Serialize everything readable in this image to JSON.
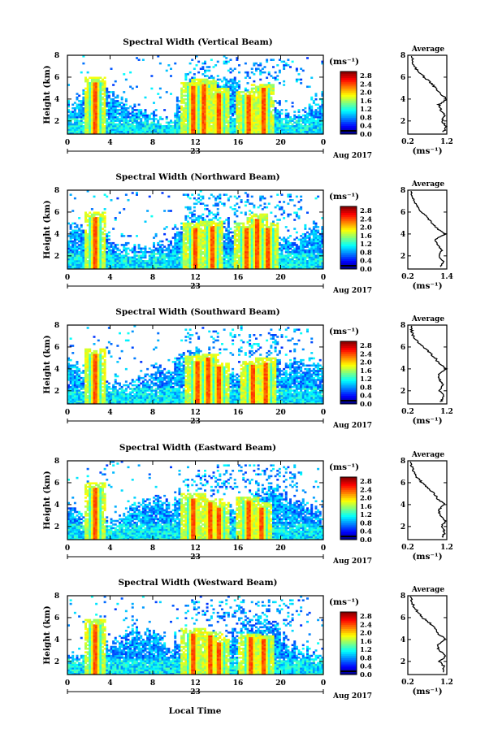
{
  "chart_data": [
    {
      "type": "heatmap",
      "title": "Spectral Width (Vertical Beam)",
      "ylabel": "Height (km)",
      "yticks": [
        "2",
        "4",
        "6",
        "8"
      ],
      "xticks": [
        "0",
        "4",
        "8",
        "12",
        "16",
        "20",
        "0"
      ],
      "xlim": [
        0,
        24
      ],
      "ylim": [
        0.8,
        8
      ],
      "date_label": "23",
      "month_label": "Aug 2017",
      "colorbar": {
        "unit": "(ms⁻¹)",
        "ticks": [
          "0.0",
          "0.4",
          "0.8",
          "1.2",
          "1.6",
          "2.0",
          "2.4",
          "2.8"
        ],
        "range": [
          0,
          3.0
        ]
      },
      "bursts": [
        {
          "t": 2.6,
          "top": 5.6
        },
        {
          "t": 11.8,
          "top": 5.2
        },
        {
          "t": 12.8,
          "top": 5.4
        },
        {
          "t": 14.2,
          "top": 4.6
        },
        {
          "t": 17.0,
          "top": 4.4
        },
        {
          "t": 18.4,
          "top": 5.0
        }
      ],
      "average": {
        "title": "Average",
        "xlabel": "(ms⁻¹)",
        "xticks": [
          "0.2",
          "1.2"
        ],
        "xlim": [
          0.2,
          1.2
        ],
        "yticks": [
          "2",
          "4",
          "6",
          "8"
        ],
        "height": [
          1.0,
          1.5,
          2.0,
          2.5,
          3.0,
          3.5,
          4.0,
          4.5,
          5.0,
          5.5,
          6.0,
          6.5,
          7.0,
          7.5,
          8.0
        ],
        "value": [
          1.12,
          1.18,
          1.08,
          1.14,
          1.05,
          1.0,
          1.2,
          1.02,
          0.92,
          0.78,
          0.62,
          0.48,
          0.36,
          0.32,
          0.3
        ]
      }
    },
    {
      "type": "heatmap",
      "title": "Spectral Width (Northward Beam)",
      "ylabel": "Height (km)",
      "yticks": [
        "2",
        "4",
        "6",
        "8"
      ],
      "xticks": [
        "0",
        "4",
        "8",
        "12",
        "16",
        "20",
        "0"
      ],
      "xlim": [
        0,
        24
      ],
      "ylim": [
        0.8,
        8
      ],
      "date_label": "23",
      "month_label": "Aug 2017",
      "colorbar": {
        "unit": "(ms⁻¹)",
        "ticks": [
          "0.0",
          "0.4",
          "0.8",
          "1.2",
          "1.6",
          "2.0",
          "2.4",
          "2.8"
        ],
        "range": [
          0,
          3.0
        ]
      },
      "bursts": [
        {
          "t": 2.6,
          "top": 5.6
        },
        {
          "t": 12.0,
          "top": 4.6
        },
        {
          "t": 13.6,
          "top": 4.8
        },
        {
          "t": 16.8,
          "top": 4.6
        },
        {
          "t": 17.8,
          "top": 5.4
        },
        {
          "t": 18.8,
          "top": 4.6
        }
      ],
      "average": {
        "title": "Average",
        "xlabel": "(ms⁻¹)",
        "xticks": [
          "0.2",
          "1.4"
        ],
        "xlim": [
          0.2,
          1.4
        ],
        "yticks": [
          "2",
          "4",
          "6",
          "8"
        ],
        "height": [
          1.0,
          1.5,
          2.0,
          2.5,
          3.0,
          3.5,
          4.0,
          4.5,
          5.0,
          5.5,
          6.0,
          6.5,
          7.0,
          7.5,
          8.0
        ],
        "value": [
          1.2,
          1.28,
          1.15,
          1.25,
          1.1,
          1.05,
          1.35,
          1.1,
          0.95,
          0.8,
          0.62,
          0.5,
          0.4,
          0.32,
          0.3
        ]
      }
    },
    {
      "type": "heatmap",
      "title": "Spectral Width (Southward Beam)",
      "ylabel": "Height (km)",
      "yticks": [
        "2",
        "4",
        "6",
        "8"
      ],
      "xticks": [
        "0",
        "4",
        "8",
        "12",
        "16",
        "20",
        "0"
      ],
      "xlim": [
        0,
        24
      ],
      "ylim": [
        0.8,
        8
      ],
      "date_label": "23",
      "month_label": "Aug 2017",
      "colorbar": {
        "unit": "(ms⁻¹)",
        "ticks": [
          "0.0",
          "0.4",
          "0.8",
          "1.2",
          "1.6",
          "2.0",
          "2.4",
          "2.8"
        ],
        "range": [
          0,
          3.0
        ]
      },
      "bursts": [
        {
          "t": 2.6,
          "top": 5.4
        },
        {
          "t": 12.2,
          "top": 4.8
        },
        {
          "t": 13.2,
          "top": 5.0
        },
        {
          "t": 14.2,
          "top": 4.2
        },
        {
          "t": 17.4,
          "top": 4.4
        },
        {
          "t": 18.6,
          "top": 4.6
        }
      ],
      "average": {
        "title": "Average",
        "xlabel": "(ms⁻¹)",
        "xticks": [
          "0.2",
          "1.2"
        ],
        "xlim": [
          0.2,
          1.2
        ],
        "yticks": [
          "2",
          "4",
          "6",
          "8"
        ],
        "height": [
          1.0,
          1.5,
          2.0,
          2.5,
          3.0,
          3.5,
          4.0,
          4.5,
          5.0,
          5.5,
          6.0,
          6.5,
          7.0,
          7.5,
          8.0
        ],
        "value": [
          1.05,
          1.12,
          1.0,
          1.1,
          1.02,
          0.98,
          1.18,
          1.0,
          0.9,
          0.75,
          0.6,
          0.45,
          0.34,
          0.3,
          0.28
        ]
      }
    },
    {
      "type": "heatmap",
      "title": "Spectral Width (Eastward Beam)",
      "ylabel": "Height (km)",
      "yticks": [
        "2",
        "4",
        "6",
        "8"
      ],
      "xticks": [
        "0",
        "4",
        "8",
        "12",
        "16",
        "20",
        "0"
      ],
      "xlim": [
        0,
        24
      ],
      "ylim": [
        0.8,
        8
      ],
      "date_label": "23",
      "month_label": "Aug 2017",
      "colorbar": {
        "unit": "(ms⁻¹)",
        "ticks": [
          "0.0",
          "0.4",
          "0.8",
          "1.2",
          "1.6",
          "2.0",
          "2.4",
          "2.8"
        ],
        "range": [
          0,
          3.0
        ]
      },
      "bursts": [
        {
          "t": 2.6,
          "top": 5.6
        },
        {
          "t": 11.8,
          "top": 4.6
        },
        {
          "t": 13.4,
          "top": 4.2
        },
        {
          "t": 14.2,
          "top": 3.8
        },
        {
          "t": 17.0,
          "top": 4.4
        },
        {
          "t": 18.2,
          "top": 3.8
        }
      ],
      "average": {
        "title": "Average",
        "xlabel": "(ms⁻¹)",
        "xticks": [
          "0.2",
          "1.2"
        ],
        "xlim": [
          0.2,
          1.2
        ],
        "yticks": [
          "2",
          "4",
          "6",
          "8"
        ],
        "height": [
          1.0,
          1.5,
          2.0,
          2.5,
          3.0,
          3.5,
          4.0,
          4.5,
          5.0,
          5.5,
          6.0,
          6.5,
          7.0,
          7.5,
          8.0
        ],
        "value": [
          1.1,
          1.15,
          1.05,
          1.18,
          1.02,
          0.98,
          1.15,
          0.98,
          0.88,
          0.72,
          0.56,
          0.44,
          0.34,
          0.3,
          0.28
        ]
      }
    },
    {
      "type": "heatmap",
      "title": "Spectral Width (Westward Beam)",
      "ylabel": "Height (km)",
      "yticks": [
        "2",
        "4",
        "6",
        "8"
      ],
      "xticks": [
        "0",
        "4",
        "8",
        "12",
        "16",
        "20",
        "0"
      ],
      "xlim": [
        0,
        24
      ],
      "ylim": [
        0.8,
        8
      ],
      "date_label": "23",
      "month_label": "Aug 2017",
      "colorbar": {
        "unit": "(ms⁻¹)",
        "ticks": [
          "0.0",
          "0.4",
          "0.8",
          "1.2",
          "1.6",
          "2.0",
          "2.4",
          "2.8"
        ],
        "range": [
          0,
          3.0
        ]
      },
      "bursts": [
        {
          "t": 2.6,
          "top": 5.4
        },
        {
          "t": 11.8,
          "top": 4.6
        },
        {
          "t": 13.4,
          "top": 4.4
        },
        {
          "t": 14.2,
          "top": 3.8
        },
        {
          "t": 17.2,
          "top": 4.2
        },
        {
          "t": 18.4,
          "top": 4.0
        }
      ],
      "average": {
        "title": "Average",
        "xlabel": "(ms⁻¹)",
        "xticks": [
          "0.2",
          "1.2"
        ],
        "xlim": [
          0.2,
          1.2
        ],
        "yticks": [
          "2",
          "4",
          "6",
          "8"
        ],
        "height": [
          1.0,
          1.5,
          2.0,
          2.5,
          3.0,
          3.5,
          4.0,
          4.5,
          5.0,
          5.5,
          6.0,
          6.5,
          7.0,
          7.5,
          8.0
        ],
        "value": [
          1.08,
          1.14,
          1.02,
          1.16,
          1.0,
          0.96,
          1.16,
          1.0,
          0.9,
          0.76,
          0.58,
          0.46,
          0.36,
          0.3,
          0.28
        ]
      }
    }
  ],
  "figure": {
    "xlabel": "Local Time"
  }
}
